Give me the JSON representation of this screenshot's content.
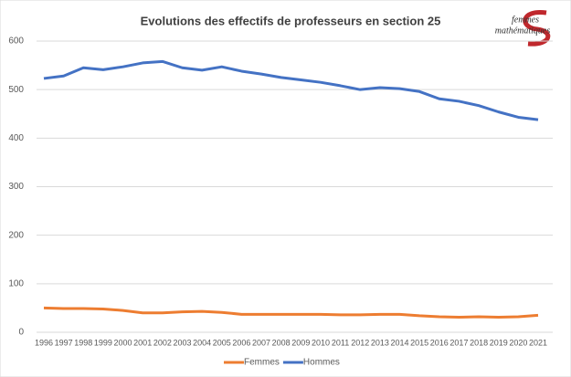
{
  "chart_data": {
    "type": "line",
    "title": "Evolutions des effectifs de professeurs en section 25",
    "annotations": [
      "femmes",
      "mathématiques"
    ],
    "categories": [
      "1996",
      "1997",
      "1998",
      "1999",
      "2000",
      "2001",
      "2002",
      "2003",
      "2004",
      "2005",
      "2006",
      "2007",
      "2008",
      "2009",
      "2010",
      "2011",
      "2012",
      "2013",
      "2014",
      "2015",
      "2016",
      "2017",
      "2018",
      "2019",
      "2020",
      "2021"
    ],
    "series": [
      {
        "name": "Femmes",
        "color": "#ed7d31",
        "values": [
          50,
          49,
          49,
          48,
          45,
          40,
          40,
          42,
          43,
          41,
          37,
          37,
          37,
          37,
          37,
          36,
          36,
          37,
          37,
          34,
          32,
          31,
          32,
          31,
          32,
          35
        ]
      },
      {
        "name": "Hommes",
        "color": "#4472c4",
        "values": [
          523,
          528,
          545,
          541,
          547,
          555,
          558,
          545,
          540,
          547,
          538,
          532,
          525,
          520,
          515,
          508,
          500,
          504,
          502,
          496,
          481,
          476,
          467,
          454,
          443,
          438
        ]
      }
    ],
    "ylim": [
      0,
      600
    ],
    "yticks": [
      0,
      100,
      200,
      300,
      400,
      500,
      600
    ],
    "grid": true,
    "legend": "bottom"
  }
}
